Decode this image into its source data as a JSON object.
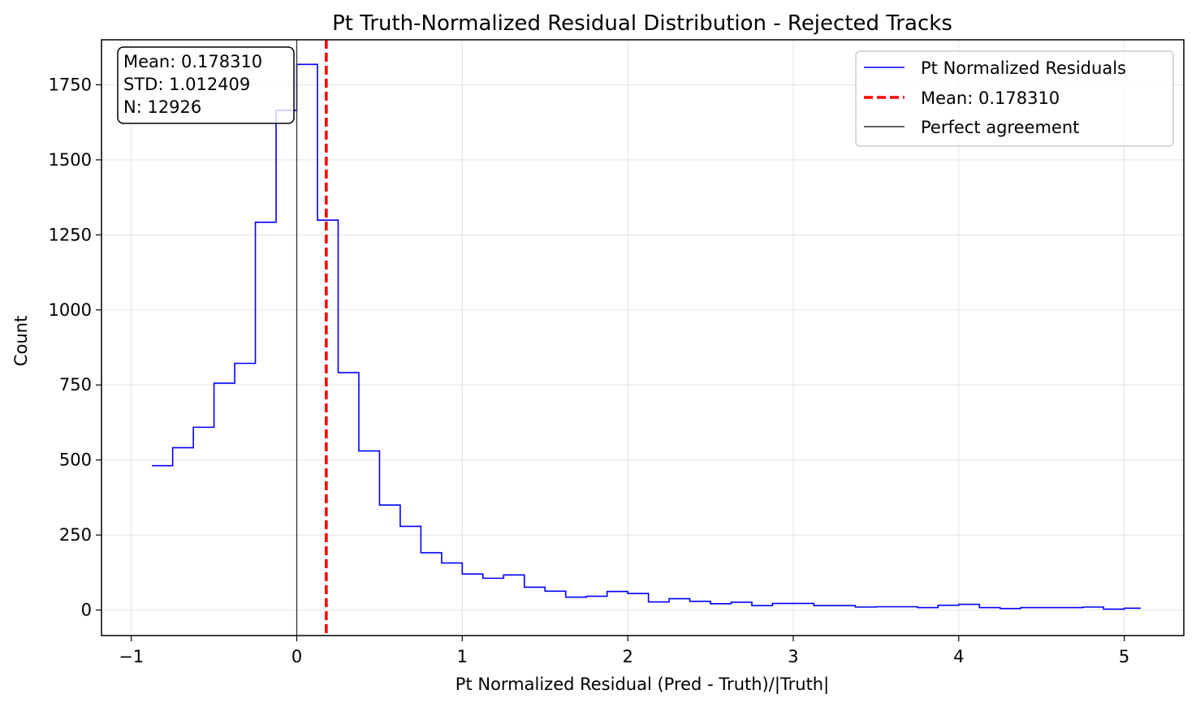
{
  "chart_data": {
    "type": "histogram",
    "title": "Pt Truth-Normalized Residual Distribution - Rejected Tracks",
    "xlabel": "Pt Normalized Residual (Pred - Truth)/|Truth|",
    "ylabel": "Count",
    "xlim": [
      -1.18,
      5.36
    ],
    "ylim": [
      -85,
      1900
    ],
    "x_ticks": [
      -1,
      0,
      1,
      2,
      3,
      4,
      5
    ],
    "x_tick_labels": [
      "−1",
      "0",
      "1",
      "2",
      "3",
      "4",
      "5"
    ],
    "y_ticks": [
      0,
      250,
      500,
      750,
      1000,
      1250,
      1500,
      1750
    ],
    "y_tick_labels": [
      "0",
      "250",
      "500",
      "750",
      "1000",
      "1250",
      "1500",
      "1750"
    ],
    "grid": true,
    "legend_position": "top-right",
    "bin_edges": [
      -0.875,
      -0.75,
      -0.625,
      -0.5,
      -0.375,
      -0.25,
      -0.125,
      0.0,
      0.125,
      0.25,
      0.375,
      0.5,
      0.625,
      0.75,
      0.875,
      1.0,
      1.125,
      1.25,
      1.375,
      1.5,
      1.625,
      1.75,
      1.875,
      2.0,
      2.125,
      2.25,
      2.375,
      2.5,
      2.625,
      2.75,
      2.875,
      3.0,
      3.125,
      3.25,
      3.375,
      3.5,
      3.625,
      3.75,
      3.875,
      4.0,
      4.125,
      4.25,
      4.375,
      4.5,
      4.625,
      4.75,
      4.875,
      5.0,
      5.1
    ],
    "series": [
      {
        "name": "Pt Normalized Residuals",
        "color": "#0000ff",
        "counts": [
          481,
          541,
          609,
          756,
          822,
          1292,
          1665,
          1818,
          1299,
          791,
          530,
          350,
          279,
          191,
          157,
          120,
          106,
          117,
          76,
          63,
          43,
          46,
          62,
          55,
          27,
          38,
          29,
          21,
          26,
          15,
          22,
          22,
          15,
          15,
          10,
          11,
          11,
          8,
          16,
          19,
          8,
          5,
          8,
          8,
          8,
          10,
          3,
          6
        ]
      }
    ],
    "reference_lines": [
      {
        "name": "Mean: 0.178310",
        "x": 0.17831,
        "color": "#ff0000",
        "style": "dashed"
      },
      {
        "name": "Perfect agreement",
        "x": 0,
        "color": "#333333",
        "style": "solid"
      }
    ],
    "stats_box": {
      "lines": [
        "Mean: 0.178310",
        "STD: 1.012409",
        "N: 12926"
      ]
    }
  }
}
